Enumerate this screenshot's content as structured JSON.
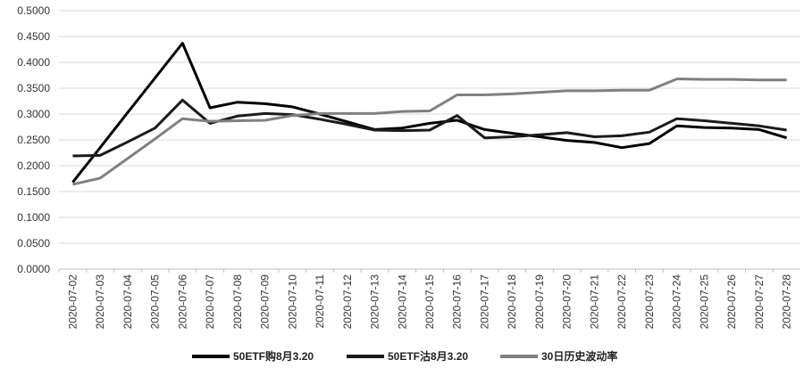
{
  "chart_data": {
    "type": "line",
    "title": "",
    "xlabel": "",
    "ylabel": "",
    "ylim": [
      0,
      0.5
    ],
    "yticks": [
      "0.0000",
      "0.0500",
      "0.1000",
      "0.1500",
      "0.2000",
      "0.2500",
      "0.3000",
      "0.3500",
      "0.4000",
      "0.4500",
      "0.5000"
    ],
    "grid": true,
    "legend": "bottom",
    "categories": [
      "2020-07-02",
      "2020-07-03",
      "2020-07-04",
      "2020-07-05",
      "2020-07-06",
      "2020-07-07",
      "2020-07-08",
      "2020-07-09",
      "2020-07-10",
      "2020-07-11",
      "2020-07-12",
      "2020-07-13",
      "2020-07-14",
      "2020-07-15",
      "2020-07-16",
      "2020-07-17",
      "2020-07-18",
      "2020-07-19",
      "2020-07-20",
      "2020-07-21",
      "2020-07-22",
      "2020-07-23",
      "2020-07-24",
      "2020-07-25",
      "2020-07-26",
      "2020-07-27",
      "2020-07-28"
    ],
    "series": [
      {
        "name": "50ETF购8月3.20",
        "color": "#000000",
        "values": [
          0.168,
          0.235,
          0.303,
          0.37,
          0.437,
          0.312,
          0.323,
          0.32,
          0.314,
          0.3,
          0.285,
          0.27,
          0.273,
          0.282,
          0.288,
          0.27,
          0.263,
          0.256,
          0.249,
          0.245,
          0.235,
          0.243,
          0.277,
          0.274,
          0.273,
          0.27,
          0.254
        ]
      },
      {
        "name": "50ETF沽8月3.20",
        "color": "#1a1a1a",
        "values": [
          0.219,
          0.22,
          0.246,
          0.273,
          0.327,
          0.282,
          0.296,
          0.301,
          0.299,
          0.29,
          0.28,
          0.269,
          0.268,
          0.269,
          0.297,
          0.254,
          0.256,
          0.26,
          0.264,
          0.256,
          0.258,
          0.265,
          0.291,
          0.287,
          0.282,
          0.277,
          0.269
        ]
      },
      {
        "name": "30日历史波动率",
        "color": "#808080",
        "values": [
          0.164,
          0.176,
          0.214,
          0.252,
          0.291,
          0.286,
          0.287,
          0.288,
          0.297,
          0.301,
          0.301,
          0.301,
          0.305,
          0.306,
          0.337,
          0.337,
          0.339,
          0.342,
          0.345,
          0.345,
          0.346,
          0.346,
          0.368,
          0.367,
          0.367,
          0.366,
          0.366
        ]
      }
    ]
  }
}
